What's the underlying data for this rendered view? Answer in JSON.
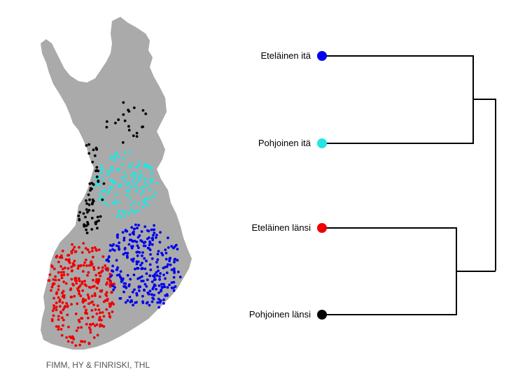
{
  "map": {
    "credit": "FIMM, HY & FINRISKI, THL",
    "land_color": "#aaaaaa",
    "clusters": [
      {
        "name": "Eteläinen itä",
        "color": "#0000ee"
      },
      {
        "name": "Pohjoinen itä",
        "color": "#22e5e5"
      },
      {
        "name": "Eteläinen länsi",
        "color": "#ee0000"
      },
      {
        "name": "Pohjoinen länsi",
        "color": "#000000"
      }
    ]
  },
  "dendrogram": {
    "leaves": [
      {
        "label": "Eteläinen itä",
        "color": "#0000ee"
      },
      {
        "label": "Pohjoinen itä",
        "color": "#22e5e5"
      },
      {
        "label": "Eteläinen länsi",
        "color": "#ee0000"
      },
      {
        "label": "Pohjoinen länsi",
        "color": "#000000"
      }
    ]
  }
}
